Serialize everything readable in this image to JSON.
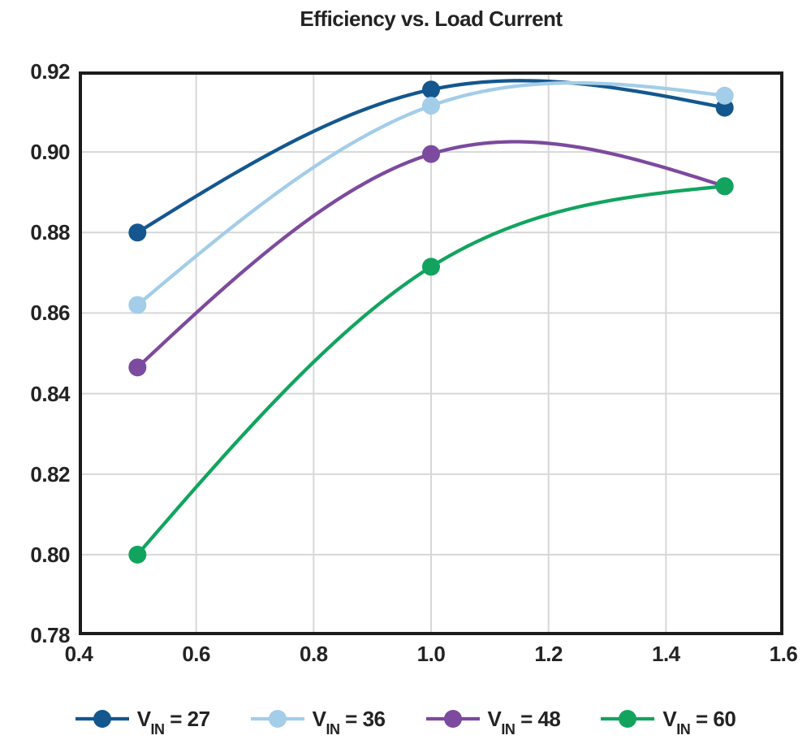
{
  "title": "Efficiency vs. Load Current",
  "colors": {
    "text": "#232323",
    "grid": "#d7d7d7",
    "border": "#1c1c1c",
    "background": "#ffffff"
  },
  "chart_data": {
    "type": "line",
    "title": "Efficiency vs. Load Current",
    "xlabel": "",
    "ylabel": "",
    "xlim": [
      0.4,
      1.6
    ],
    "ylim": [
      0.78,
      0.92
    ],
    "x_tick_values": [
      0.4,
      0.6,
      0.8,
      1.0,
      1.2,
      1.4,
      1.6
    ],
    "x_tick_labels": [
      "0.4",
      "0.6",
      "0.8",
      "1.0",
      "1.2",
      "1.4",
      "1.6"
    ],
    "y_tick_values": [
      0.78,
      0.8,
      0.82,
      0.84,
      0.86,
      0.88,
      0.9,
      0.92
    ],
    "y_tick_labels": [
      "0.78",
      "0.80",
      "0.82",
      "0.84",
      "0.86",
      "0.88",
      "0.90",
      "0.92"
    ],
    "grid": true,
    "curve": "smooth-spline",
    "marker": "circle",
    "legend_position": "bottom",
    "x": [
      0.5,
      1.0,
      1.5
    ],
    "series": [
      {
        "id": "vin-27",
        "name": "VIN = 27",
        "label_main": "V",
        "label_sub": "IN",
        "label_rest": " = 27",
        "color": "#14578f",
        "values": [
          0.88,
          0.9155,
          0.911
        ]
      },
      {
        "id": "vin-36",
        "name": "VIN = 36",
        "label_main": "V",
        "label_sub": "IN",
        "label_rest": " = 36",
        "color": "#a3cde9",
        "values": [
          0.862,
          0.9115,
          0.914
        ]
      },
      {
        "id": "vin-48",
        "name": "VIN = 48",
        "label_main": "V",
        "label_sub": "IN",
        "label_rest": " = 48",
        "color": "#7c4a9e",
        "values": [
          0.8465,
          0.8995,
          0.8915
        ]
      },
      {
        "id": "vin-60",
        "name": "VIN = 60",
        "label_main": "V",
        "label_sub": "IN",
        "label_rest": " = 60",
        "color": "#12a45f",
        "values": [
          0.8,
          0.8715,
          0.8915
        ]
      }
    ]
  }
}
